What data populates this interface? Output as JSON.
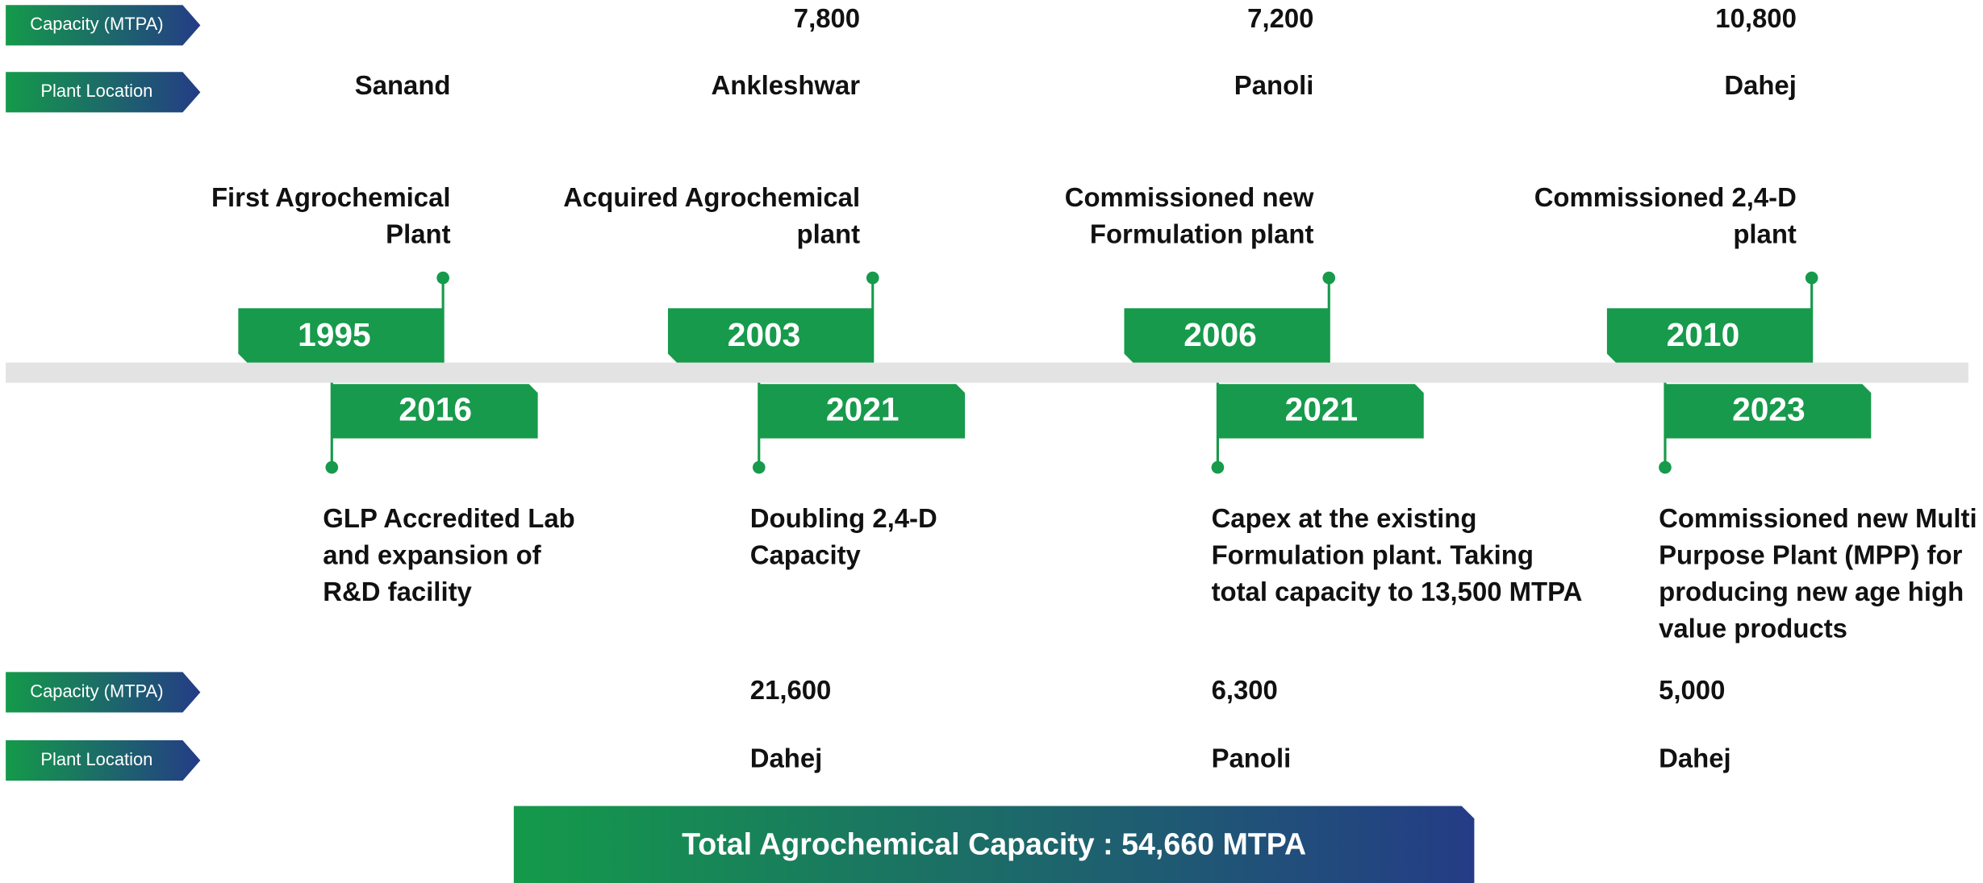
{
  "row_labels": {
    "capacity": "Capacity (MTPA)",
    "location": "Plant Location"
  },
  "upper": [
    {
      "year": "1995",
      "lines": [
        "First Agrochemical",
        "Plant"
      ],
      "location": "Sanand"
    },
    {
      "year": "2003",
      "lines": [
        "Acquired Agrochemical",
        "plant"
      ],
      "capacity": "7,800",
      "location": "Ankleshwar"
    },
    {
      "year": "2006",
      "lines": [
        "Commissioned new",
        "Formulation plant"
      ],
      "capacity": "7,200",
      "location": "Panoli"
    },
    {
      "year": "2010",
      "lines": [
        "Commissioned 2,4-D",
        "plant"
      ],
      "capacity": "10,800",
      "location": "Dahej"
    }
  ],
  "lower": [
    {
      "year": "2016",
      "lines": [
        "GLP Accredited Lab",
        "and expansion of",
        "R&D facility"
      ]
    },
    {
      "year": "2021",
      "lines": [
        "Doubling 2,4-D",
        "Capacity"
      ],
      "capacity": "21,600",
      "location": "Dahej"
    },
    {
      "year": "2021",
      "lines": [
        "Capex at the existing",
        "Formulation plant. Taking",
        "total capacity to 13,500 MTPA"
      ],
      "capacity": "6,300",
      "location": "Panoli"
    },
    {
      "year": "2023",
      "lines": [
        "Commissioned new Multi",
        "Purpose Plant (MPP) for",
        "producing new age high",
        "value products"
      ],
      "capacity": "5,000",
      "location": "Dahej"
    }
  ],
  "total": "Total Agrochemical  Capacity : 54,660 MTPA"
}
